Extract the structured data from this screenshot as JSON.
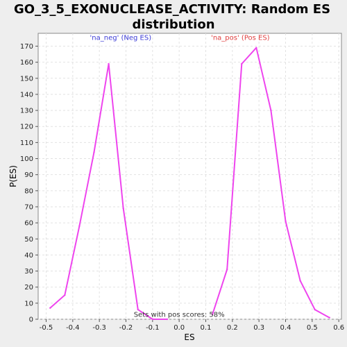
{
  "chart_data": {
    "type": "line",
    "title_lines": [
      "GO_3_5_EXONUCLEASE_ACTIVITY: Random ES",
      "distribution"
    ],
    "xlabel": "ES",
    "ylabel": "P(ES)",
    "xlim": [
      -0.53,
      0.61
    ],
    "ylim": [
      0,
      178
    ],
    "xticks": [
      -0.5,
      -0.4,
      -0.3,
      -0.2,
      -0.1,
      0.0,
      0.1,
      0.2,
      0.3,
      0.4,
      0.5,
      0.6
    ],
    "xtick_labels": [
      "-0.5",
      "-0.4",
      "-0.3",
      "-0.2",
      "-0.1",
      "0.0",
      "0.1",
      "0.2",
      "0.3",
      "0.4",
      "0.5",
      "0.6"
    ],
    "yticks": [
      0,
      10,
      20,
      30,
      40,
      50,
      60,
      70,
      80,
      90,
      100,
      110,
      120,
      130,
      140,
      150,
      160,
      170
    ],
    "ytick_labels": [
      "0",
      "10",
      "20",
      "30",
      "40",
      "50",
      "60",
      "70",
      "80",
      "90",
      "100",
      "110",
      "120",
      "130",
      "140",
      "150",
      "160",
      "170"
    ],
    "grid": true,
    "line_color": "#ee44ee",
    "series": [
      {
        "x": [
          -0.485,
          -0.43,
          -0.375,
          -0.32,
          -0.265,
          -0.21,
          -0.155,
          -0.1,
          -0.045
        ],
        "y": [
          7,
          15,
          58,
          104,
          159,
          69,
          6,
          0,
          0
        ]
      },
      {
        "x": [
          0.125,
          0.18,
          0.235,
          0.29,
          0.345,
          0.4,
          0.455,
          0.51,
          0.565
        ],
        "y": [
          3,
          31,
          159,
          169,
          130,
          61,
          24,
          6,
          1
        ]
      }
    ],
    "annotations": [
      {
        "text": "'na_neg' (Neg ES)",
        "x": -0.22,
        "y": 174,
        "color": "#3b3bd6"
      },
      {
        "text": "'na_pos' (Pos ES)",
        "x": 0.23,
        "y": 174,
        "color": "#e04040"
      },
      {
        "text": "Sets with pos scores: 58%",
        "x": 0.0,
        "y": 1.5,
        "color": "#333333"
      }
    ]
  }
}
